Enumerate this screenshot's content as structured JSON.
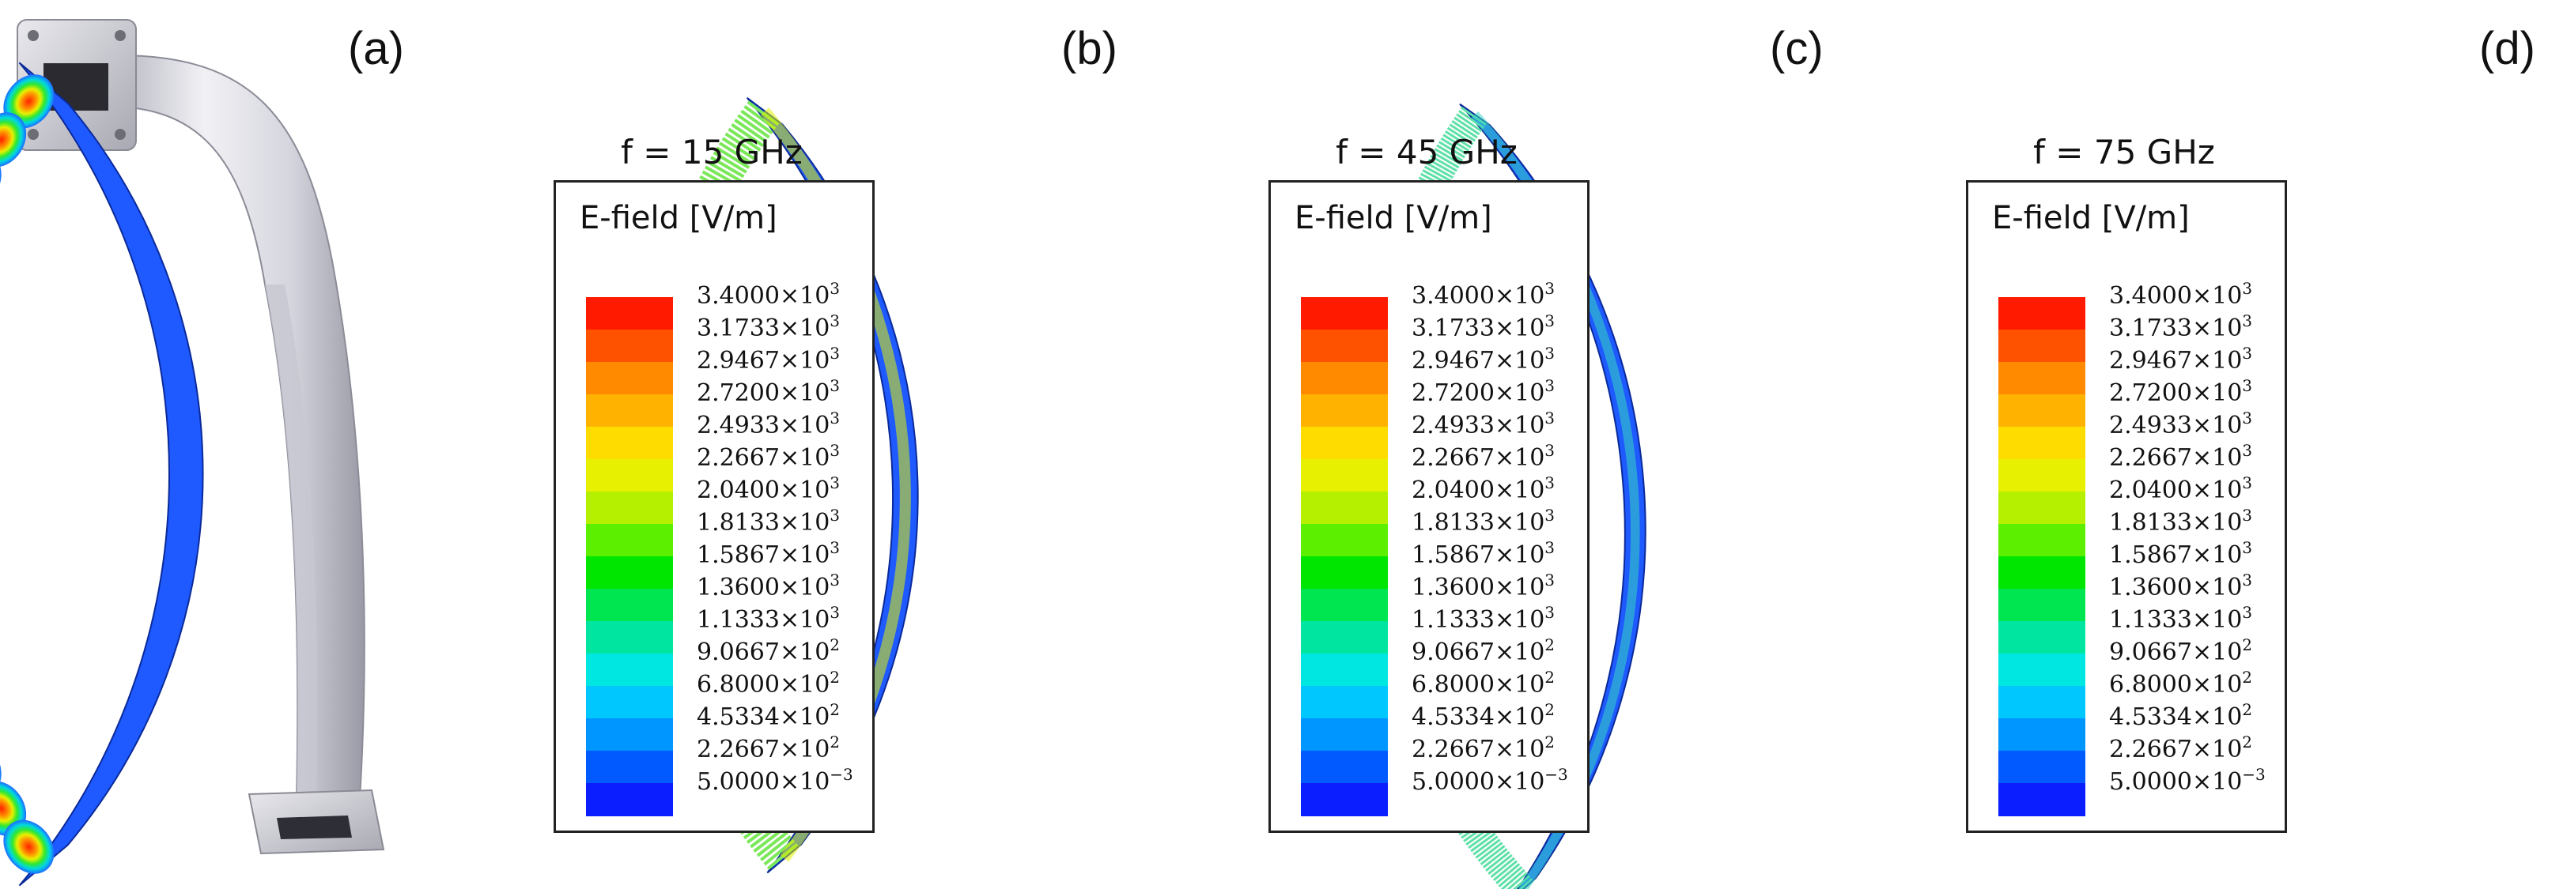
{
  "panels": [
    {
      "id": "a",
      "label": "(a)"
    },
    {
      "id": "b",
      "label": "(b)",
      "frequency": "f = 15 GHz"
    },
    {
      "id": "c",
      "label": "(c)",
      "frequency": "f = 45 GHz"
    },
    {
      "id": "d",
      "label": "(d)",
      "frequency": "f = 75 GHz"
    }
  ],
  "legend": {
    "title": "E-field [V/m]",
    "entries": [
      {
        "mantissa": "3.4000×10",
        "exp": "3"
      },
      {
        "mantissa": "3.1733×10",
        "exp": "3"
      },
      {
        "mantissa": "2.9467×10",
        "exp": "3"
      },
      {
        "mantissa": "2.7200×10",
        "exp": "3"
      },
      {
        "mantissa": "2.4933×10",
        "exp": "3"
      },
      {
        "mantissa": "2.2667×10",
        "exp": "3"
      },
      {
        "mantissa": "2.0400×10",
        "exp": "3"
      },
      {
        "mantissa": "1.8133×10",
        "exp": "3"
      },
      {
        "mantissa": "1.5867×10",
        "exp": "3"
      },
      {
        "mantissa": "1.3600×10",
        "exp": "3"
      },
      {
        "mantissa": "1.1333×10",
        "exp": "3"
      },
      {
        "mantissa": "9.0667×10",
        "exp": "2"
      },
      {
        "mantissa": "6.8000×10",
        "exp": "2"
      },
      {
        "mantissa": "4.5334×10",
        "exp": "2"
      },
      {
        "mantissa": "2.2667×10",
        "exp": "2"
      },
      {
        "mantissa": "5.0000×10",
        "exp": "−3"
      }
    ],
    "colors": [
      "#ff1a00",
      "#ff5200",
      "#ff8a00",
      "#ffb300",
      "#ffdc00",
      "#e6f000",
      "#b4f000",
      "#5cf000",
      "#00e600",
      "#00e650",
      "#00e6a0",
      "#00e6e0",
      "#00c8ff",
      "#0096ff",
      "#005aff",
      "#0a1eff"
    ]
  },
  "colors": {
    "waveguide_light": "#e8e8ee",
    "waveguide_shade": "#a9a9b5",
    "field_background": "#1e5aff",
    "field_hot": "#ff2a00"
  }
}
